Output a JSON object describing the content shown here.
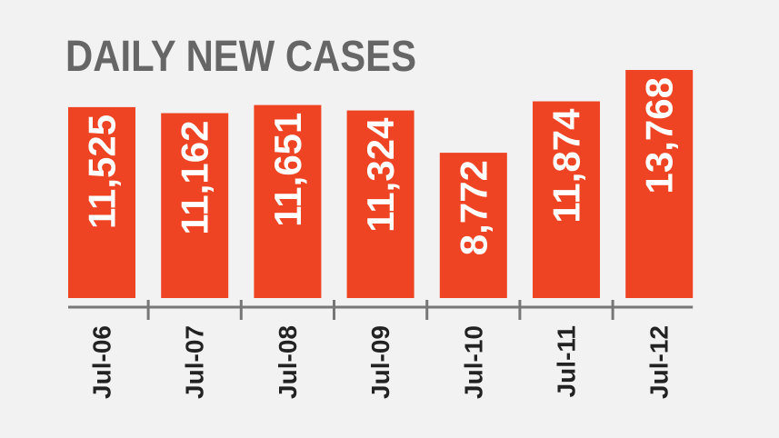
{
  "chart_data": {
    "type": "bar",
    "title": "DAILY NEW CASES",
    "categories": [
      "Jul-06",
      "Jul-07",
      "Jul-08",
      "Jul-09",
      "Jul-10",
      "Jul-11",
      "Jul-12"
    ],
    "values": [
      11525,
      11162,
      11651,
      11324,
      8772,
      11874,
      13768
    ],
    "value_labels": [
      "11,525",
      "11,162",
      "11,651",
      "11,324",
      "8,772",
      "11,874",
      "13,768"
    ],
    "color": "#ee4423"
  }
}
